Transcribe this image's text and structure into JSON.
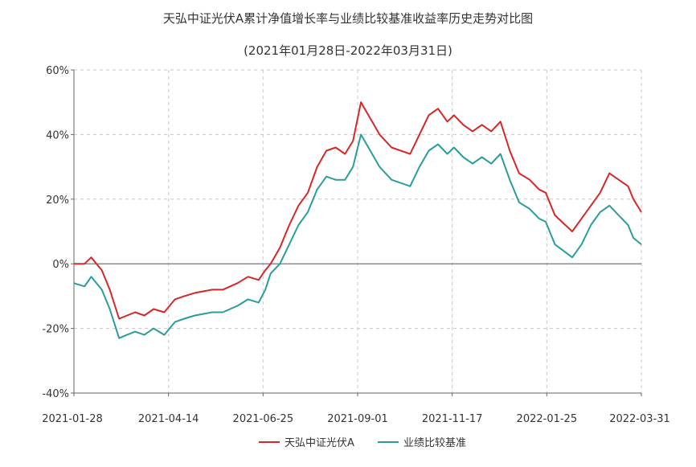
{
  "chart_data": {
    "type": "line",
    "title": "天弘中证光伏A累计净值增长率与业绩比较基准收益率历史走势对比图",
    "subtitle": "(2021年01月28日-2022年03月31日)",
    "xlabel": "",
    "ylabel": "",
    "ylim": [
      -40,
      60
    ],
    "yticks": [
      "-40%",
      "-20%",
      "0%",
      "20%",
      "40%",
      "60%"
    ],
    "x_ticks": [
      "2021-01-28",
      "2021-04-14",
      "2021-06-25",
      "2021-09-01",
      "2021-11-17",
      "2022-01-25",
      "2022-03-31"
    ],
    "x": [
      "2021-01-28",
      "2021-02-05",
      "2021-02-10",
      "2021-02-18",
      "2021-02-24",
      "2021-03-03",
      "2021-03-09",
      "2021-03-15",
      "2021-03-22",
      "2021-03-29",
      "2021-04-06",
      "2021-04-14",
      "2021-04-21",
      "2021-04-29",
      "2021-05-12",
      "2021-05-20",
      "2021-05-31",
      "2021-06-08",
      "2021-06-16",
      "2021-06-21",
      "2021-06-25",
      "2021-07-02",
      "2021-07-09",
      "2021-07-16",
      "2021-07-23",
      "2021-07-30",
      "2021-08-06",
      "2021-08-13",
      "2021-08-20",
      "2021-08-26",
      "2021-09-01",
      "2021-09-08",
      "2021-09-15",
      "2021-09-24",
      "2021-10-08",
      "2021-10-15",
      "2021-10-22",
      "2021-10-29",
      "2021-11-05",
      "2021-11-10",
      "2021-11-17",
      "2021-11-24",
      "2021-12-01",
      "2021-12-08",
      "2021-12-15",
      "2021-12-22",
      "2021-12-29",
      "2022-01-06",
      "2022-01-13",
      "2022-01-18",
      "2022-01-25",
      "2022-02-07",
      "2022-02-14",
      "2022-02-21",
      "2022-02-28",
      "2022-03-07",
      "2022-03-14",
      "2022-03-21",
      "2022-03-25",
      "2022-03-31"
    ],
    "series": [
      {
        "name": "天弘中证光伏A",
        "color": "#d62728",
        "values": [
          0,
          0,
          2,
          -2,
          -8,
          -17,
          -16,
          -15,
          -16,
          -14,
          -15,
          -11,
          -10,
          -9,
          -8,
          -8,
          -6,
          -4,
          -5,
          -2,
          0,
          5,
          12,
          18,
          22,
          30,
          35,
          36,
          34,
          38,
          50,
          45,
          40,
          36,
          34,
          40,
          46,
          48,
          44,
          46,
          43,
          41,
          43,
          41,
          44,
          35,
          28,
          26,
          23,
          22,
          15,
          10,
          14,
          18,
          22,
          28,
          26,
          24,
          20,
          16
        ],
        "line_width": 2
      },
      {
        "name": "业绩比较基准",
        "color": "#2a9d9a",
        "values": [
          -6,
          -7,
          -4,
          -8,
          -14,
          -23,
          -22,
          -21,
          -22,
          -20,
          -22,
          -18,
          -17,
          -16,
          -15,
          -15,
          -13,
          -11,
          -12,
          -8,
          -3,
          0,
          6,
          12,
          16,
          23,
          27,
          26,
          26,
          30,
          40,
          35,
          30,
          26,
          24,
          30,
          35,
          37,
          34,
          36,
          33,
          31,
          33,
          31,
          34,
          26,
          19,
          17,
          14,
          13,
          6,
          2,
          6,
          12,
          16,
          18,
          15,
          12,
          8,
          6
        ],
        "line_width": 2
      }
    ],
    "grid": true,
    "legend": "bottom-center",
    "colors": {
      "axis": "#666666",
      "grid": "#c8c8c8",
      "zero_line": "#666666"
    }
  }
}
